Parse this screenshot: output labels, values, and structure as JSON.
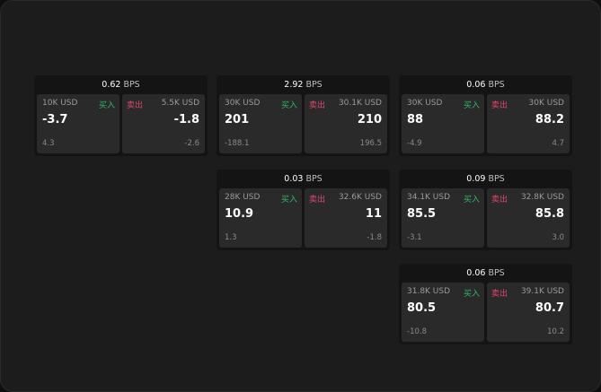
{
  "colors": {
    "buy": "#2fb86a",
    "sell": "#e0456e",
    "background": "#1c1c1c"
  },
  "unit": "BPS",
  "buy_label": "买入",
  "sell_label": "卖出",
  "cards": [
    {
      "spread": "0.62",
      "bid_size": "10K USD",
      "bid": "-3.7",
      "bid_delta": "4.3",
      "ask_size": "5.5K USD",
      "ask": "-1.8",
      "ask_delta": "-2.6"
    },
    {
      "spread": "2.92",
      "bid_size": "30K USD",
      "bid": "201",
      "bid_delta": "-188.1",
      "ask_size": "30.1K USD",
      "ask": "210",
      "ask_delta": "196.5"
    },
    {
      "spread": "0.06",
      "bid_size": "30K USD",
      "bid": "88",
      "bid_delta": "-4.9",
      "ask_size": "30K USD",
      "ask": "88.2",
      "ask_delta": "4.7"
    },
    {
      "spread": "0.03",
      "bid_size": "28K USD",
      "bid": "10.9",
      "bid_delta": "1.3",
      "ask_size": "32.6K USD",
      "ask": "11",
      "ask_delta": "-1.8"
    },
    {
      "spread": "0.09",
      "bid_size": "34.1K USD",
      "bid": "85.5",
      "bid_delta": "-3.1",
      "ask_size": "32.8K USD",
      "ask": "85.8",
      "ask_delta": "3.0"
    },
    {
      "spread": "0.06",
      "bid_size": "31.8K USD",
      "bid": "80.5",
      "bid_delta": "-10.8",
      "ask_size": "39.1K USD",
      "ask": "80.7",
      "ask_delta": "10.2"
    }
  ]
}
